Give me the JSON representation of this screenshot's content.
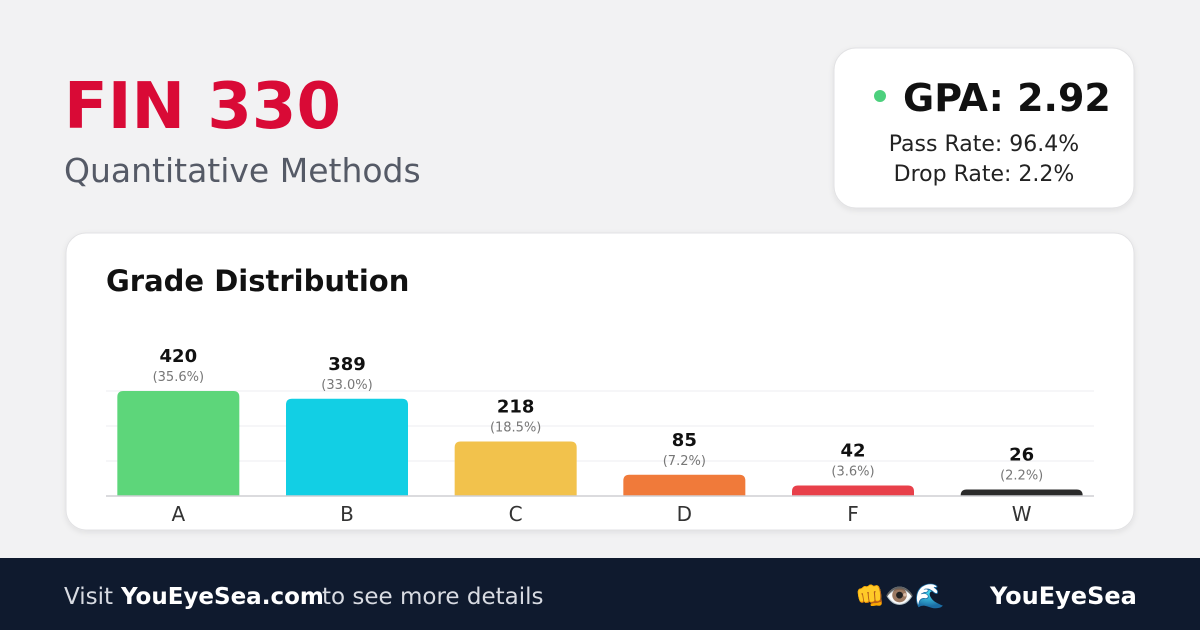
{
  "header": {
    "title": "FIN 330",
    "subtitle": "Quantitative Methods"
  },
  "stats": {
    "gpa": "GPA: 2.92",
    "pass_rate": "Pass Rate: 96.4%",
    "drop_rate": "Drop Rate: 2.2%"
  },
  "chart_data": {
    "type": "bar",
    "title": "Grade Distribution",
    "categories": [
      "A",
      "B",
      "C",
      "D",
      "F",
      "W"
    ],
    "values": [
      420,
      389,
      218,
      85,
      42,
      26
    ],
    "percent_labels": [
      "(35.6%)",
      "(33.0%)",
      "(18.5%)",
      "(7.2%)",
      "(3.6%)",
      "(2.2%)"
    ],
    "colors": [
      "#5dd67a",
      "#12cfe4",
      "#f2c24c",
      "#f07a3a",
      "#e8404a",
      "#2b2b2b"
    ],
    "ylim": [
      0,
      420
    ],
    "gridlines": [
      140,
      280,
      420
    ],
    "grid": true
  },
  "footer": {
    "visit": "Visit",
    "site": "YouEyeSea.com",
    "rest": "to see more details",
    "icons": "👊👁️🌊",
    "brand": "YouEyeSea"
  }
}
